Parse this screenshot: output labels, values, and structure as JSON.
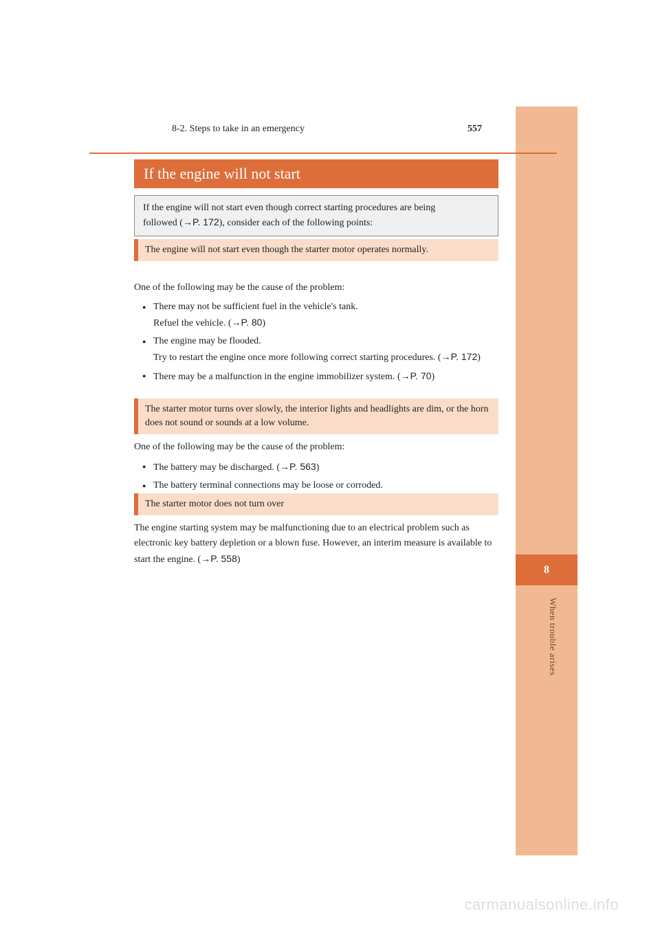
{
  "header": {
    "page_number": "557",
    "breadcrumb": "8-2. Steps to take in an emergency"
  },
  "title": "If the engine will not start",
  "intro": {
    "line1": "If the engine will not start even though correct starting procedures are being",
    "line2_prefix": "followed (",
    "line2_ref": "→P. 172",
    "line2_suffix": "), consider each of the following points:"
  },
  "section1": {
    "header": "The engine will not start even though the starter motor operates normally.",
    "intro": "One of the following may be the cause of the problem:",
    "bullet1": "There may not be sufficient fuel in the vehicle's tank.",
    "bullet1_sub_prefix": "Refuel the vehicle. (",
    "bullet1_sub_ref": "→P. 80",
    "bullet1_sub_suffix": ")",
    "bullet2": "The engine may be flooded.",
    "bullet2_sub": "Try to restart the engine once more following correct starting procedures. (",
    "bullet2_sub_ref": "→P. 172",
    "bullet2_sub_suffix": ")",
    "bullet3": "There may be a malfunction in the engine immobilizer system. (",
    "bullet3_ref": "→P. 70",
    "bullet3_suffix": ")"
  },
  "section2": {
    "header": "The starter motor turns over slowly, the interior lights and headlights are dim, or the horn does not sound or sounds at a low volume.",
    "intro": "One of the following may be the cause of the problem:",
    "bullet1": "The battery may be discharged. (",
    "bullet1_ref": "→P. 563",
    "bullet1_suffix": ")",
    "bullet2": "The battery terminal connections may be loose or corroded."
  },
  "section3": {
    "header": "The starter motor does not turn over",
    "para1": "The engine starting system may be malfunctioning due to an electrical problem such as electronic key battery depletion or a blown fuse. However, an interim measure is available to start the engine. (",
    "para1_ref": "→P. 558",
    "para1_suffix": ")"
  },
  "sidebar": {
    "tab_number": "8",
    "label": "When trouble arises"
  },
  "watermark": "carmanualsonline.info",
  "colors": {
    "accent": "#dd6e3a",
    "light_peach": "#f1b991",
    "header_bg": "#f9ddc9",
    "intro_bg": "#f0f0f0"
  }
}
